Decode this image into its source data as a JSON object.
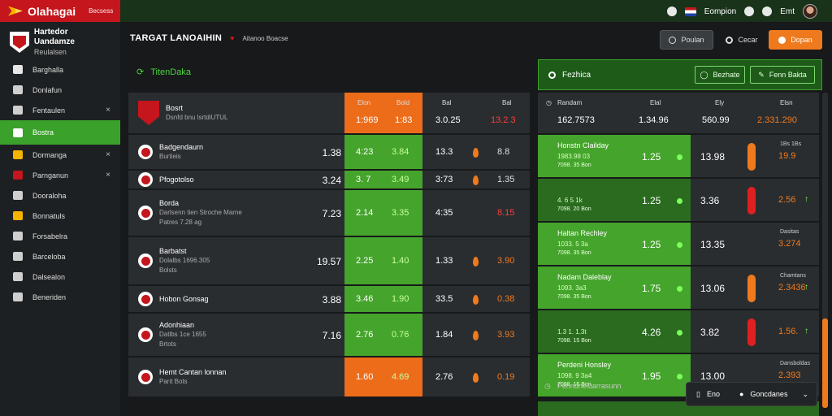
{
  "topbar": {
    "brand_name": "Olahagai",
    "brand_tag": "Becsess",
    "right": [
      {
        "icon": "refresh-icon",
        "label": ""
      },
      {
        "icon": "flag-icon",
        "label": "Eompion"
      },
      {
        "icon": "link-icon",
        "label": ""
      },
      {
        "icon": "gear-icon",
        "label": "Emt"
      }
    ]
  },
  "sidebar": {
    "club_title": "Hartedor Uandamze",
    "club_sub": "Reulalsen",
    "items": [
      {
        "label": "Barghalla",
        "icon": "arrow-icon",
        "close": ""
      },
      {
        "label": "Donlafun",
        "icon": "layers-icon",
        "close": ""
      },
      {
        "label": "Fentaulen",
        "icon": "tag-icon",
        "close": "×"
      },
      {
        "label": "Bostra",
        "icon": "check-icon",
        "close": "",
        "active": true
      },
      {
        "label": "Dormanga",
        "icon": "trophy-icon",
        "close": "×"
      },
      {
        "label": "Parnganun",
        "icon": "flag-icon",
        "close": "×"
      },
      {
        "label": "Dooraloha",
        "icon": "grid-icon",
        "close": ""
      },
      {
        "label": "Bonnatuls",
        "icon": "bolt-icon",
        "close": ""
      },
      {
        "label": "Forsabelra",
        "icon": "user-icon",
        "close": ""
      },
      {
        "label": "Barceloba",
        "icon": "globe-icon",
        "close": ""
      },
      {
        "label": "Dalsealon",
        "icon": "layers-icon",
        "close": ""
      },
      {
        "label": "Beneriden",
        "icon": "pin-icon",
        "close": ""
      }
    ]
  },
  "header": {
    "title": "TARGAT LANOAIHIN",
    "sub": "Aitanoo Boacse",
    "btn1": "Poulan",
    "btn2": "Cecar",
    "btn3": "Dopan"
  },
  "section_title": "TitenDaka",
  "search": {
    "label": "Fezhica",
    "btn1": "Bezhate",
    "btn2": "Fenn Bakta"
  },
  "left_head": {
    "team": "Bosrt",
    "team_sub": "Dsnfd bnu lsrtdiUTUL",
    "h1": "Elon",
    "h2": "Bold",
    "h3": "Bal",
    "h4": "Bal",
    "v1": "1:969",
    "v2": "1:83",
    "v3": "3.0.25",
    "v4": "13.2.3"
  },
  "left_rows": [
    {
      "name": "Badgendaurn",
      "sub": "Burtieis",
      "sub2": "",
      "odd": "1.38",
      "a": "4:23",
      "b": "3.84",
      "c": "13.3",
      "d": "8.8",
      "d_color": "white",
      "mark": true,
      "orange": false
    },
    {
      "name": "Pfogotolso",
      "sub": "",
      "sub2": "",
      "odd": "3.24",
      "a": "3. 7",
      "b": "3.49",
      "c": "3:73",
      "d": "1.35",
      "d_color": "white",
      "mark": true,
      "orange": false
    },
    {
      "name": "Borda",
      "sub": "Darlsenn tien Stroche Marne",
      "sub2": "Patres 7.28 ag",
      "odd": "7.23",
      "a": "2.14",
      "b": "3.35",
      "c": "4:35",
      "d": "8.15",
      "d_color": "red",
      "mark": false,
      "orange": false
    },
    {
      "name": "Barbatst",
      "sub": "Dolalbs 1696.305",
      "sub2": "Bolsts",
      "odd": "19.57",
      "a": "2.25",
      "b": "1.40",
      "c": "1.33",
      "d": "3.90",
      "d_color": "orange",
      "mark": true,
      "orange": false
    },
    {
      "name": "Hobon Gonsag",
      "sub": "",
      "sub2": "",
      "odd": "3.88",
      "a": "3.46",
      "b": "1.90",
      "c": "33.5",
      "d": "0.38",
      "d_color": "orange",
      "mark": true,
      "orange": false
    },
    {
      "name": "Adonhiaan",
      "sub": "Datlbs 1ce 1655",
      "sub2": "Brtots",
      "odd": "7.16",
      "a": "2.76",
      "b": "0.76",
      "c": "1.84",
      "d": "3.93",
      "d_color": "orange",
      "mark": true,
      "orange": false
    },
    {
      "name": "Hemt Cantan lonnan",
      "sub": "Parit Bots",
      "sub2": "",
      "odd": "",
      "a": "1.60",
      "b": "4.69",
      "c": "2.76",
      "d": "0.19",
      "d_color": "orange",
      "mark": true,
      "orange": true
    }
  ],
  "right_head": {
    "h1": "Randam",
    "h2": "Elal",
    "h3": "Ely",
    "h4": "Elsn",
    "v1": "162.7573",
    "v2": "1.34.96",
    "v3": "560.99",
    "v4": "2.331.290"
  },
  "right_rows": [
    {
      "t1": "Honstn Clailday",
      "t2": "1983.98 03",
      "t3": "7098. 35 Bon",
      "odd": "1.25",
      "odd2": "13.98",
      "bar": "orange",
      "vs": "1Bs 1Bs",
      "v": "19.9",
      "mk": "",
      "dark": false
    },
    {
      "t1": "",
      "t2": "4. 6 5 1k",
      "t3": "7098. 20 Bon",
      "odd": "1.25",
      "odd2": "3.36",
      "bar": "red",
      "vs": "",
      "v": "2.56",
      "mk": "↑",
      "dark": true
    },
    {
      "t1": "Haltan Rechley",
      "t2": "1033. 5 3a",
      "t3": "7098. 35 Bon",
      "odd": "1.25",
      "odd2": "13.35",
      "bar": "",
      "vs": "Dasitas",
      "v": "3.274",
      "mk": "",
      "dark": false
    },
    {
      "t1": "Nadam Daleblay",
      "t2": "1093. 3a3",
      "t3": "7098. 35 Bon",
      "odd": "1.75",
      "odd2": "13.06",
      "bar": "orange",
      "vs": "Chamtans",
      "v": "2.3436",
      "mk": "↑",
      "dark": false
    },
    {
      "t1": "",
      "t2": "1.3 1. 1.3t",
      "t3": "7098. 15 Bon",
      "odd": "4.26",
      "odd2": "3.82",
      "bar": "red",
      "vs": "",
      "v": "1.56.",
      "mk": "↑",
      "dark": true
    },
    {
      "t1": "Perdeni Honsley",
      "t2": "1098. 9 3a4",
      "t3": "7098. 15 Bon",
      "odd": "1.95",
      "odd2": "13.00",
      "bar": "",
      "vs": "Dansboldas",
      "v": "2.393",
      "mk": "",
      "dark": false
    }
  ],
  "footer": {
    "note": "Penndneluarrasunn",
    "toast_left": "Eno",
    "toast_label": "Goncdanes"
  }
}
